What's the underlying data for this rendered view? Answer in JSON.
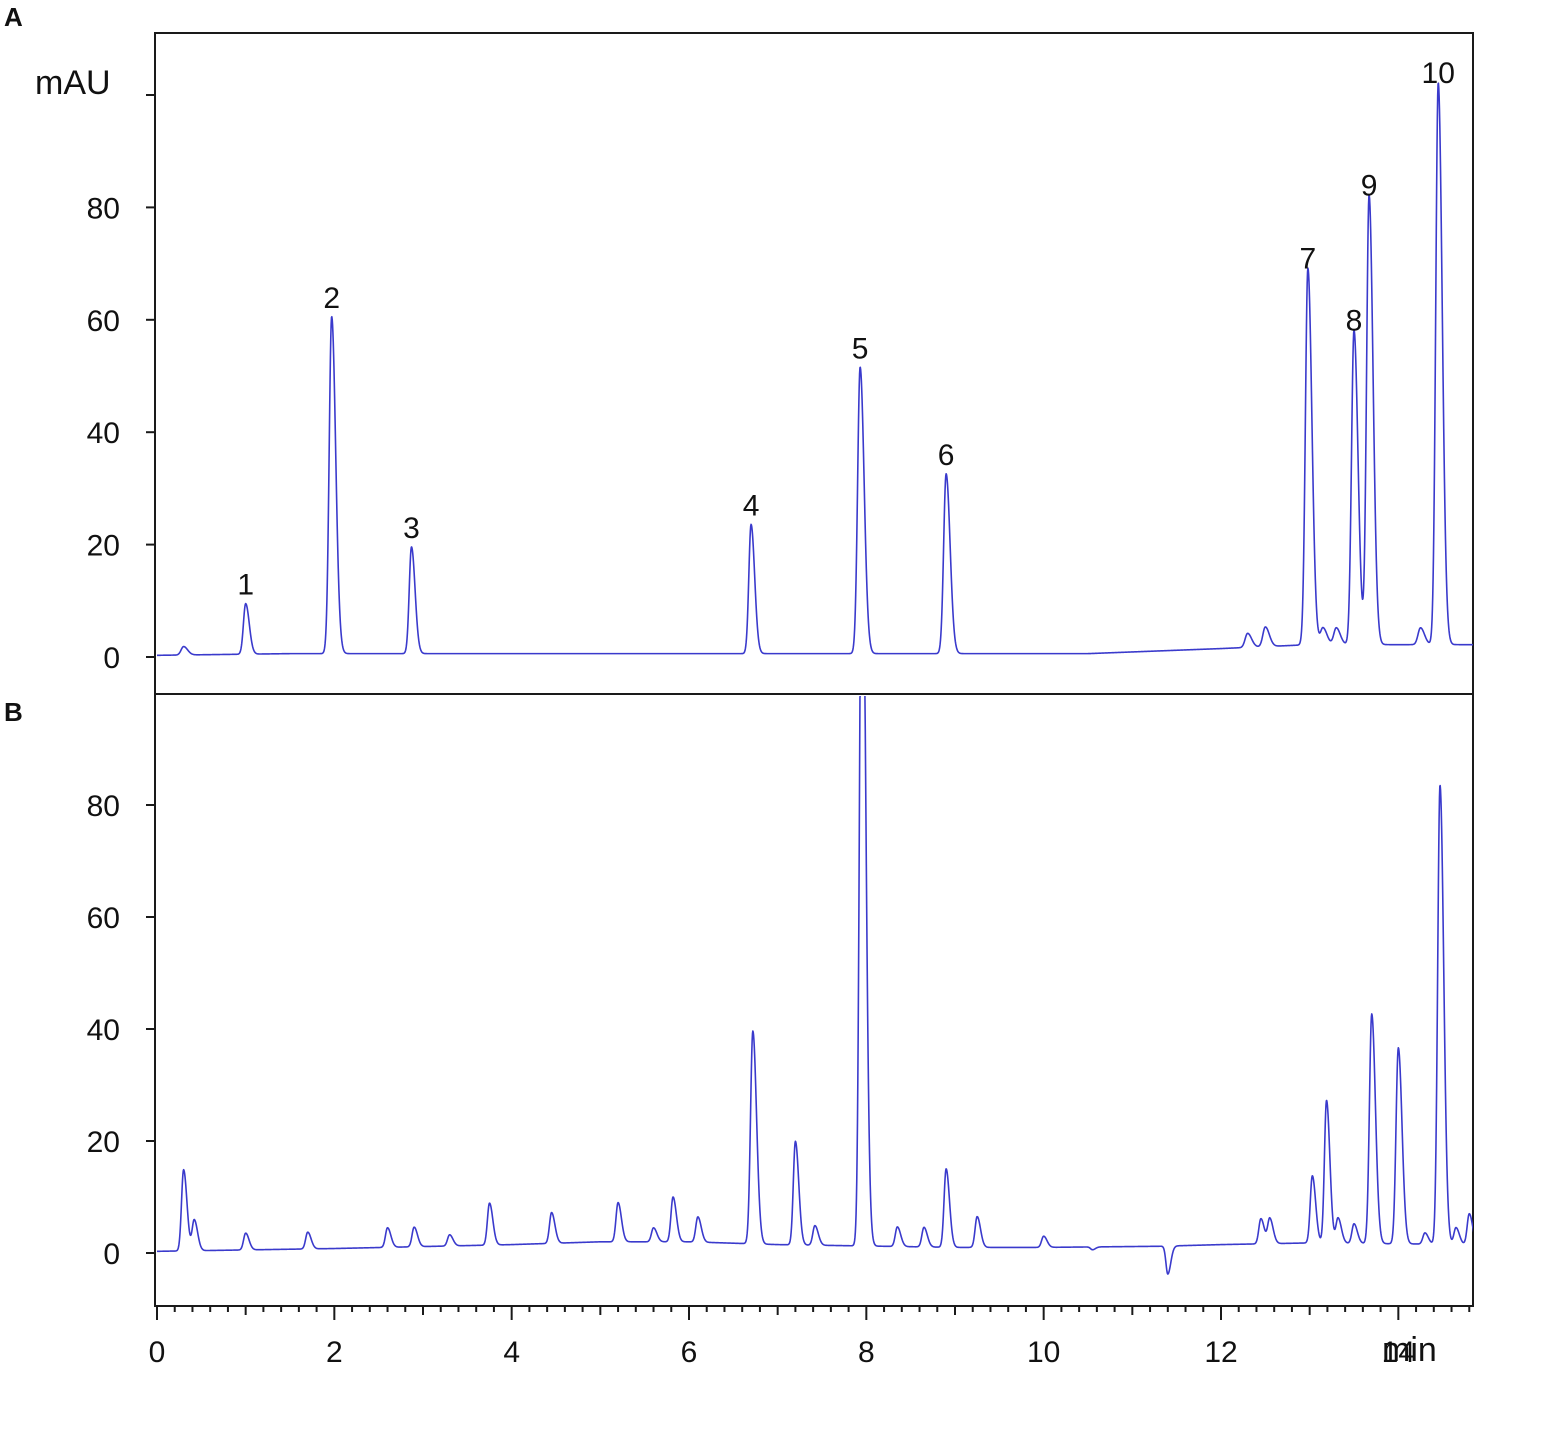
{
  "figure": {
    "trace_color": "#3a3acc",
    "frame_color": "#1a1a1a"
  },
  "chart_data": [
    {
      "panel": "A",
      "type": "line",
      "ylabel": "mAU",
      "xlabel": "min",
      "xlim": [
        0,
        15
      ],
      "ylim": [
        -7,
        110
      ],
      "y_ticks": [
        0,
        20,
        40,
        60,
        80,
        100
      ],
      "y_tick_labels": [
        "0",
        "20",
        "40",
        "60",
        "80",
        ""
      ],
      "baseline": [
        [
          0,
          0.3
        ],
        [
          1.5,
          0.6
        ],
        [
          4,
          0.6
        ],
        [
          8,
          0.6
        ],
        [
          10.5,
          0.6
        ],
        [
          12,
          1.5
        ],
        [
          13,
          2.2
        ],
        [
          14.5,
          2.2
        ],
        [
          14.9,
          2.2
        ]
      ],
      "peaks": [
        {
          "label": "1",
          "rt": 1.0,
          "height": 9
        },
        {
          "label": "2",
          "rt": 1.97,
          "height": 60
        },
        {
          "label": "3",
          "rt": 2.87,
          "height": 19
        },
        {
          "label": "4",
          "rt": 6.7,
          "height": 23
        },
        {
          "label": "5",
          "rt": 7.93,
          "height": 51
        },
        {
          "label": "6",
          "rt": 8.9,
          "height": 32
        },
        {
          "label": "7",
          "rt": 12.98,
          "height": 67
        },
        {
          "label": "8",
          "rt": 13.5,
          "height": 56
        },
        {
          "label": "9",
          "rt": 13.67,
          "height": 80
        },
        {
          "label": "10",
          "rt": 14.45,
          "height": 100
        }
      ],
      "minor_peaks": [
        {
          "rt": 0.3,
          "height": 1.5
        },
        {
          "rt": 12.3,
          "height": 2.5
        },
        {
          "rt": 12.5,
          "height": 3.5
        },
        {
          "rt": 13.15,
          "height": 3
        },
        {
          "rt": 13.3,
          "height": 3
        },
        {
          "rt": 14.25,
          "height": 3
        }
      ]
    },
    {
      "panel": "B",
      "type": "line",
      "xlabel": "min",
      "xlim": [
        0,
        15
      ],
      "ylim": [
        -10,
        96
      ],
      "y_ticks": [
        0,
        20,
        40,
        60,
        80
      ],
      "y_tick_labels": [
        "0",
        "20",
        "40",
        "60",
        "80"
      ],
      "x_ticks": [
        0,
        2,
        4,
        6,
        8,
        10,
        12,
        14
      ],
      "x_tick_labels": [
        "0",
        "2",
        "4",
        "6",
        "8",
        "10",
        "12",
        "14"
      ],
      "baseline": [
        [
          0,
          0.3
        ],
        [
          2,
          0.8
        ],
        [
          4,
          1.5
        ],
        [
          5,
          2
        ],
        [
          6,
          2
        ],
        [
          7,
          1.5
        ],
        [
          9,
          1
        ],
        [
          10,
          1
        ],
        [
          11.3,
          1.2
        ],
        [
          12,
          1.5
        ],
        [
          13,
          1.8
        ],
        [
          14.9,
          1.5
        ]
      ],
      "peaks": [
        {
          "rt": 0.3,
          "height": 14.5
        },
        {
          "rt": 0.42,
          "height": 5.5
        },
        {
          "rt": 1.0,
          "height": 3
        },
        {
          "rt": 1.7,
          "height": 3
        },
        {
          "rt": 2.6,
          "height": 3.5
        },
        {
          "rt": 2.9,
          "height": 3.5
        },
        {
          "rt": 3.3,
          "height": 2
        },
        {
          "rt": 3.75,
          "height": 7.5
        },
        {
          "rt": 4.45,
          "height": 5.5
        },
        {
          "rt": 5.2,
          "height": 7
        },
        {
          "rt": 5.6,
          "height": 2.5
        },
        {
          "rt": 5.82,
          "height": 8
        },
        {
          "rt": 6.1,
          "height": 4.5
        },
        {
          "rt": 6.72,
          "height": 38
        },
        {
          "rt": 7.2,
          "height": 18.5
        },
        {
          "rt": 7.42,
          "height": 3.5
        },
        {
          "rt": 7.95,
          "height": 140
        },
        {
          "rt": 8.35,
          "height": 3.5
        },
        {
          "rt": 8.65,
          "height": 3.5
        },
        {
          "rt": 8.9,
          "height": 14
        },
        {
          "rt": 9.25,
          "height": 5.5
        },
        {
          "rt": 10.0,
          "height": 2
        },
        {
          "rt": 12.45,
          "height": 4.5
        },
        {
          "rt": 12.55,
          "height": 4.5
        },
        {
          "rt": 13.03,
          "height": 12
        },
        {
          "rt": 13.19,
          "height": 25.5
        },
        {
          "rt": 13.32,
          "height": 4.5
        },
        {
          "rt": 13.5,
          "height": 3.5
        },
        {
          "rt": 13.7,
          "height": 41
        },
        {
          "rt": 14.0,
          "height": 35
        },
        {
          "rt": 14.3,
          "height": 2
        },
        {
          "rt": 14.47,
          "height": 82
        },
        {
          "rt": 14.65,
          "height": 3
        },
        {
          "rt": 14.8,
          "height": 5.5
        }
      ],
      "dips": [
        {
          "rt": 11.4,
          "depth": -5
        },
        {
          "rt": 10.55,
          "depth": -0.5
        }
      ]
    }
  ]
}
